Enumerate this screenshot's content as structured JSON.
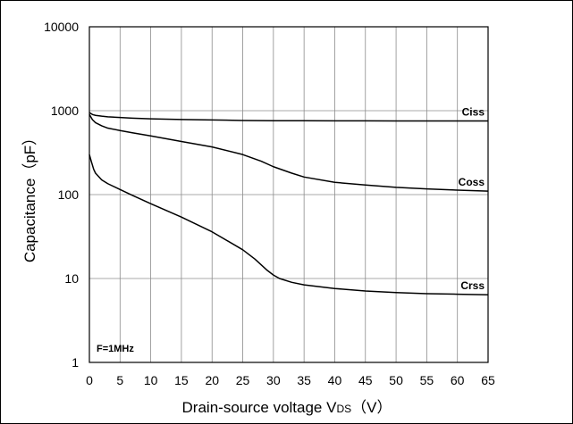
{
  "chart_data": {
    "type": "line",
    "title": "",
    "xlabel": "Drain-source voltage V",
    "xlabel_sub": "DS",
    "xlabel_unit": "（V）",
    "ylabel": "Capacitance（pF）",
    "xlim": [
      0,
      65
    ],
    "ylim": [
      1,
      10000
    ],
    "yscale": "log",
    "grid": true,
    "x_ticks": [
      "0",
      "5",
      "10",
      "15",
      "20",
      "25",
      "30",
      "35",
      "40",
      "45",
      "50",
      "55",
      "60",
      "65"
    ],
    "y_ticks": [
      "1",
      "10",
      "100",
      "1000",
      "10000"
    ],
    "annotation": "F=1MHz",
    "series": [
      {
        "name": "Ciss",
        "x": [
          0,
          0.5,
          1,
          2,
          3,
          5,
          7,
          10,
          15,
          20,
          25,
          30,
          35,
          40,
          45,
          50,
          55,
          60,
          65
        ],
        "y": [
          950,
          900,
          880,
          860,
          845,
          830,
          815,
          800,
          785,
          775,
          765,
          760,
          758,
          757,
          756,
          755,
          755,
          755,
          755
        ]
      },
      {
        "name": "Coss",
        "x": [
          0,
          0.5,
          1,
          2,
          3,
          5,
          7,
          10,
          15,
          20,
          25,
          28,
          30,
          33,
          35,
          40,
          45,
          50,
          55,
          60,
          65
        ],
        "y": [
          900,
          780,
          720,
          660,
          620,
          580,
          545,
          500,
          430,
          370,
          300,
          250,
          215,
          180,
          162,
          140,
          130,
          122,
          117,
          113,
          110
        ]
      },
      {
        "name": "Crss",
        "x": [
          0,
          0.3,
          0.7,
          1,
          2,
          3,
          5,
          7,
          10,
          15,
          20,
          25,
          27,
          29,
          30,
          31,
          33,
          35,
          40,
          45,
          50,
          55,
          60,
          65
        ],
        "y": [
          300,
          250,
          200,
          180,
          150,
          135,
          115,
          98,
          78,
          54,
          36,
          22,
          17,
          12.5,
          11,
          10,
          9,
          8.4,
          7.6,
          7.1,
          6.8,
          6.6,
          6.5,
          6.4
        ]
      }
    ]
  }
}
